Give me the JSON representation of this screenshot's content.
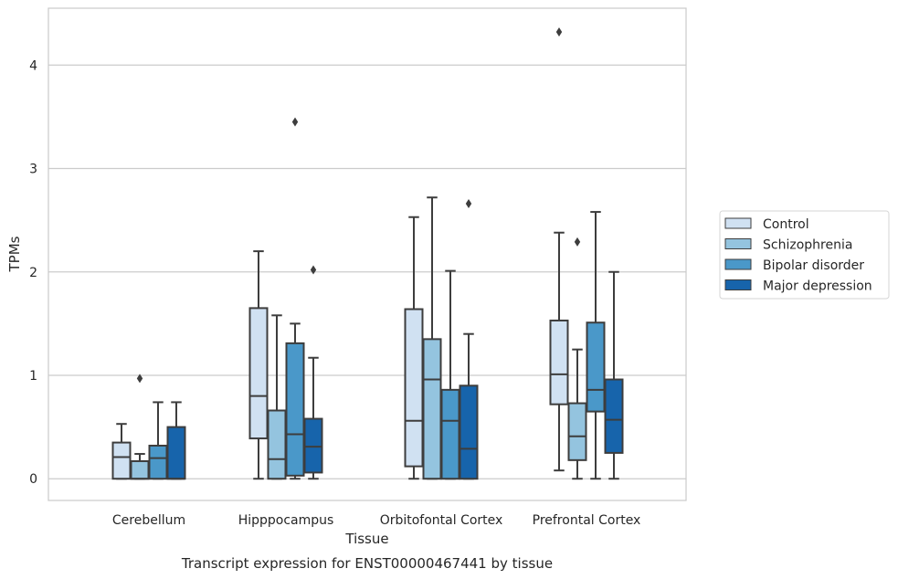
{
  "chart_data": {
    "type": "boxplot",
    "title": "",
    "caption": "Transcript expression for ENST00000467441 by tissue",
    "xlabel": "Tissue",
    "ylabel": "TPMs",
    "ylim": [
      -0.21,
      4.55
    ],
    "yticks": [
      0,
      1,
      2,
      3,
      4
    ],
    "grid": "horizontal",
    "legend_position": "right",
    "categories": [
      "Cerebellum",
      "Hipppocampus",
      "Orbitofontal Cortex",
      "Prefrontal Cortex"
    ],
    "series": [
      {
        "name": "Control",
        "color": "#d0e1f2",
        "boxes": [
          {
            "whislo": 0.0,
            "q1": 0.0,
            "med": 0.21,
            "q3": 0.35,
            "whishi": 0.53,
            "fliers": []
          },
          {
            "whislo": 0.0,
            "q1": 0.39,
            "med": 0.8,
            "q3": 1.65,
            "whishi": 2.2,
            "fliers": []
          },
          {
            "whislo": 0.0,
            "q1": 0.12,
            "med": 0.56,
            "q3": 1.64,
            "whishi": 2.53,
            "fliers": []
          },
          {
            "whislo": 0.08,
            "q1": 0.72,
            "med": 1.01,
            "q3": 1.53,
            "whishi": 2.38,
            "fliers": [
              4.32
            ]
          }
        ]
      },
      {
        "name": "Schizophrenia",
        "color": "#94c4df",
        "boxes": [
          {
            "whislo": 0.0,
            "q1": 0.0,
            "med": 0.0,
            "q3": 0.17,
            "whishi": 0.24,
            "fliers": [
              0.97
            ]
          },
          {
            "whislo": 0.0,
            "q1": 0.0,
            "med": 0.19,
            "q3": 0.66,
            "whishi": 1.58,
            "fliers": []
          },
          {
            "whislo": 0.0,
            "q1": 0.0,
            "med": 0.96,
            "q3": 1.35,
            "whishi": 2.72,
            "fliers": []
          },
          {
            "whislo": 0.0,
            "q1": 0.18,
            "med": 0.41,
            "q3": 0.73,
            "whishi": 1.25,
            "fliers": [
              2.29
            ]
          }
        ]
      },
      {
        "name": "Bipolar disorder",
        "color": "#4a98c9",
        "boxes": [
          {
            "whislo": 0.0,
            "q1": 0.0,
            "med": 0.2,
            "q3": 0.32,
            "whishi": 0.74,
            "fliers": []
          },
          {
            "whislo": 0.0,
            "q1": 0.03,
            "med": 0.43,
            "q3": 1.31,
            "whishi": 1.5,
            "fliers": [
              3.45
            ]
          },
          {
            "whislo": 0.0,
            "q1": 0.0,
            "med": 0.56,
            "q3": 0.86,
            "whishi": 2.01,
            "fliers": []
          },
          {
            "whislo": 0.0,
            "q1": 0.65,
            "med": 0.86,
            "q3": 1.51,
            "whishi": 2.58,
            "fliers": []
          }
        ]
      },
      {
        "name": "Major depression",
        "color": "#1764ab",
        "boxes": [
          {
            "whislo": 0.0,
            "q1": 0.0,
            "med": 0.0,
            "q3": 0.5,
            "whishi": 0.74,
            "fliers": []
          },
          {
            "whislo": 0.0,
            "q1": 0.06,
            "med": 0.31,
            "q3": 0.58,
            "whishi": 1.17,
            "fliers": [
              2.02
            ]
          },
          {
            "whislo": 0.0,
            "q1": 0.0,
            "med": 0.29,
            "q3": 0.9,
            "whishi": 1.4,
            "fliers": [
              2.66
            ]
          },
          {
            "whislo": 0.0,
            "q1": 0.25,
            "med": 0.57,
            "q3": 0.96,
            "whishi": 2.0,
            "fliers": []
          }
        ]
      }
    ]
  }
}
